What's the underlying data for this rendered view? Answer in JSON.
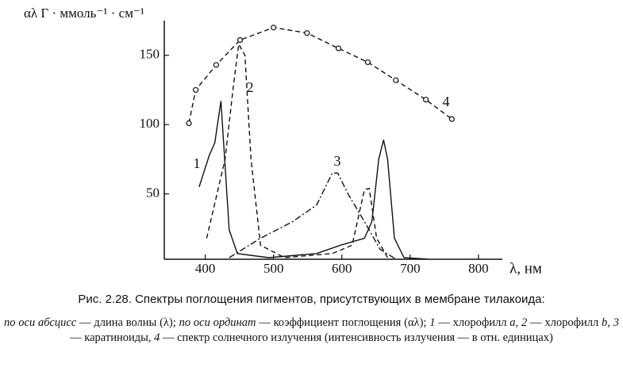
{
  "chart_data": {
    "type": "line",
    "ylabel": "αλ Г · ммоль⁻¹ · см⁻¹",
    "xlabel": "λ, нм",
    "xlim": [
      340,
      835
    ],
    "ylim": [
      0,
      175
    ],
    "xticks": [
      400,
      500,
      600,
      700,
      800
    ],
    "yticks": [
      50,
      100,
      150
    ],
    "grid": false,
    "series": [
      {
        "name": "1",
        "color": "#111111",
        "line_style": "solid",
        "marker": "none",
        "x": [
          391,
          406,
          414,
          423,
          435,
          447,
          493,
          563,
          598,
          633,
          644,
          654,
          661,
          667,
          677,
          691,
          726
        ],
        "values": [
          55,
          78,
          87,
          117,
          24,
          7,
          4,
          7,
          13,
          18,
          30,
          75,
          89,
          75,
          18,
          4,
          3
        ]
      },
      {
        "name": "2",
        "color": "#111111",
        "line_style": "dashed",
        "marker": "none",
        "x": [
          402,
          429,
          441,
          449,
          458,
          467,
          481,
          516,
          586,
          615,
          633,
          640,
          651,
          667
        ],
        "values": [
          18,
          75,
          127,
          158,
          150,
          75,
          13,
          4,
          7,
          13,
          53,
          54,
          18,
          4
        ]
      },
      {
        "name": "3",
        "color": "#111111",
        "line_style": "dashdot",
        "marker": "none",
        "x": [
          435,
          481,
          528,
          563,
          586,
          594,
          609,
          633,
          656,
          679
        ],
        "values": [
          4,
          18,
          30,
          42,
          65,
          65,
          50,
          30,
          10,
          3
        ]
      },
      {
        "name": "4",
        "color": "#111111",
        "line_style": "dashed",
        "marker": "circle",
        "x": [
          376,
          386,
          416,
          451,
          500,
          549,
          595,
          638,
          679,
          723,
          761
        ],
        "values": [
          101,
          125,
          143,
          161,
          170,
          166,
          155,
          145,
          132,
          118,
          104
        ]
      }
    ]
  },
  "caption": {
    "title": "Рис. 2.28. Спектры поглощения пигментов, присутствующих в мембране тилакоида:",
    "parts": [
      {
        "text": "по оси абсцисс",
        "italic": true
      },
      {
        "text": " — длина волны (λ); ",
        "italic": false
      },
      {
        "text": "по оси ординат",
        "italic": true
      },
      {
        "text": " — коэффициент поглощения (αλ); ",
        "italic": false
      },
      {
        "text": "1",
        "italic": true
      },
      {
        "text": " — хлорофилл ",
        "italic": false
      },
      {
        "text": "a",
        "italic": true
      },
      {
        "text": ", ",
        "italic": false
      },
      {
        "text": "2",
        "italic": true
      },
      {
        "text": " — хлорофилл ",
        "italic": false
      },
      {
        "text": "b",
        "italic": true
      },
      {
        "text": ", ",
        "italic": false
      },
      {
        "text": "3",
        "italic": true
      },
      {
        "text": " — каратиноиды, ",
        "italic": false
      },
      {
        "text": "4",
        "italic": true
      },
      {
        "text": " — спектр солнечного излучения (интенсивность излучения — в отн. единицах)",
        "italic": false
      }
    ]
  }
}
